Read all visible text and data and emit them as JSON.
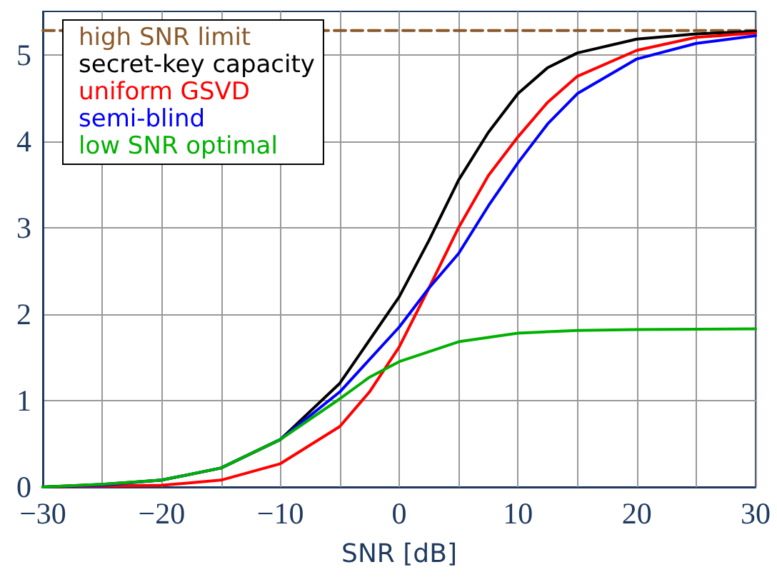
{
  "chart_data": {
    "type": "line",
    "xlabel": "SNR [dB]",
    "xlim": [
      -30,
      30
    ],
    "ylim": [
      0,
      5.5
    ],
    "xticks": [
      -30,
      {
        "value": -25,
        "label": null
      },
      -20,
      {
        "value": -15,
        "label": null
      },
      -10,
      {
        "value": -5,
        "label": null
      },
      0,
      {
        "value": 5,
        "label": null
      },
      10,
      {
        "value": 15,
        "label": null
      },
      20,
      {
        "value": 25,
        "label": null
      },
      30
    ],
    "yticks": [
      0,
      1,
      2,
      3,
      4,
      5
    ],
    "grid": true,
    "legend": "top left",
    "marker": "none",
    "series": [
      {
        "name": "high SNR limit",
        "color": "#8b5a2b",
        "line_style": "dashed",
        "x": [
          -30,
          30
        ],
        "values": [
          5.28,
          5.28
        ]
      },
      {
        "name": "secret-key capacity",
        "color": "#000000",
        "x": [
          -30,
          -25,
          -20,
          -15,
          -10,
          -5,
          0,
          2.5,
          5,
          7.5,
          10,
          12.5,
          15,
          20,
          25,
          30
        ],
        "values": [
          0,
          0.03,
          0.08,
          0.22,
          0.55,
          1.2,
          2.2,
          2.85,
          3.55,
          4.1,
          4.55,
          4.85,
          5.02,
          5.18,
          5.24,
          5.27
        ]
      },
      {
        "name": "uniform GSVD",
        "color": "#ff0000",
        "x": [
          -30,
          -25,
          -20,
          -15,
          -10,
          -5,
          -2.5,
          0,
          2.5,
          5,
          7.5,
          10,
          12.5,
          15,
          20,
          25,
          30
        ],
        "values": [
          0,
          0.01,
          0.02,
          0.08,
          0.27,
          0.7,
          1.1,
          1.62,
          2.3,
          3.0,
          3.6,
          4.05,
          4.45,
          4.75,
          5.05,
          5.2,
          5.25
        ]
      },
      {
        "name": "semi-blind",
        "color": "#0000ff",
        "x": [
          -30,
          -25,
          -20,
          -15,
          -10,
          -5,
          0,
          2.5,
          5,
          7.5,
          10,
          12.5,
          15,
          20,
          25,
          30
        ],
        "values": [
          0,
          0.02,
          0.08,
          0.22,
          0.55,
          1.1,
          1.85,
          2.3,
          2.7,
          3.25,
          3.75,
          4.2,
          4.55,
          4.95,
          5.13,
          5.22
        ]
      },
      {
        "name": "low SNR optimal",
        "color": "#00b000",
        "x": [
          -30,
          -25,
          -20,
          -15,
          -10,
          -5,
          -2.5,
          0,
          5,
          10,
          15,
          20,
          30
        ],
        "values": [
          0,
          0.03,
          0.08,
          0.22,
          0.55,
          1.02,
          1.27,
          1.45,
          1.68,
          1.78,
          1.81,
          1.82,
          1.83
        ]
      }
    ]
  }
}
